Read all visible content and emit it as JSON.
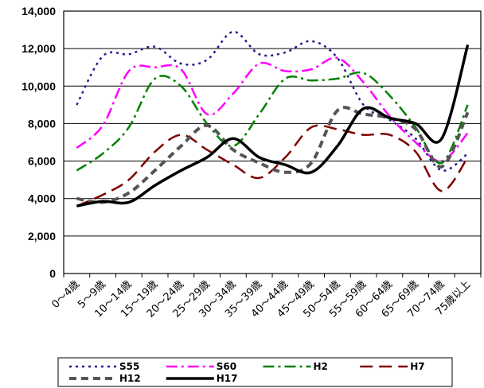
{
  "chart_data": {
    "type": "line",
    "categories": [
      "0～4歳",
      "5～9歳",
      "10～14歳",
      "15～19歳",
      "20～24歳",
      "25～29歳",
      "30～34歳",
      "35～39歳",
      "40～44歳",
      "45～49歳",
      "50～54歳",
      "55～59歳",
      "60～64歳",
      "65～69歳",
      "70～74歳",
      "75歳以上"
    ],
    "yticks": [
      "0",
      "2,000",
      "4,000",
      "6,000",
      "8,000",
      "10,000",
      "12,000",
      "14,000"
    ],
    "ylim": [
      0,
      14000
    ],
    "grid": true,
    "legend_position": "bottom",
    "series": [
      {
        "name": "S55",
        "color": "#1f1f8f",
        "dash": "3,5",
        "width": 2.5,
        "values": [
          9000,
          11600,
          11700,
          12100,
          11200,
          11400,
          12900,
          11700,
          11800,
          12400,
          11500,
          9000,
          8200,
          7200,
          5500,
          6400
        ]
      },
      {
        "name": "S60",
        "color": "#ff00ff",
        "dash": "14,5,3,5",
        "width": 2.5,
        "values": [
          6700,
          7900,
          10800,
          11000,
          10900,
          8500,
          9600,
          11200,
          10800,
          10900,
          11500,
          10200,
          8400,
          7000,
          6000,
          7500
        ]
      },
      {
        "name": "H2",
        "color": "#008000",
        "dash": "14,5,3,5",
        "width": 2.5,
        "values": [
          5500,
          6400,
          7800,
          10400,
          10000,
          8000,
          6800,
          8500,
          10400,
          10300,
          10400,
          10700,
          9500,
          7800,
          5900,
          9000
        ]
      },
      {
        "name": "H7",
        "color": "#800000",
        "dash": "16,8",
        "width": 2.5,
        "values": [
          3600,
          4200,
          5000,
          6500,
          7400,
          6600,
          5800,
          5100,
          6200,
          7800,
          7700,
          7400,
          7400,
          6500,
          4400,
          6200
        ]
      },
      {
        "name": "H12",
        "color": "#555555",
        "dash": "9,6",
        "width": 4,
        "values": [
          4000,
          3800,
          4300,
          5500,
          6800,
          7900,
          6600,
          5900,
          5400,
          5900,
          8700,
          8500,
          8300,
          7700,
          5700,
          8600
        ]
      },
      {
        "name": "H17",
        "color": "#000000",
        "dash": "",
        "width": 3.5,
        "values": [
          3600,
          3850,
          3800,
          4700,
          5500,
          6200,
          7200,
          6200,
          5800,
          5400,
          6800,
          8800,
          8300,
          8000,
          7200,
          12200
        ]
      }
    ]
  }
}
